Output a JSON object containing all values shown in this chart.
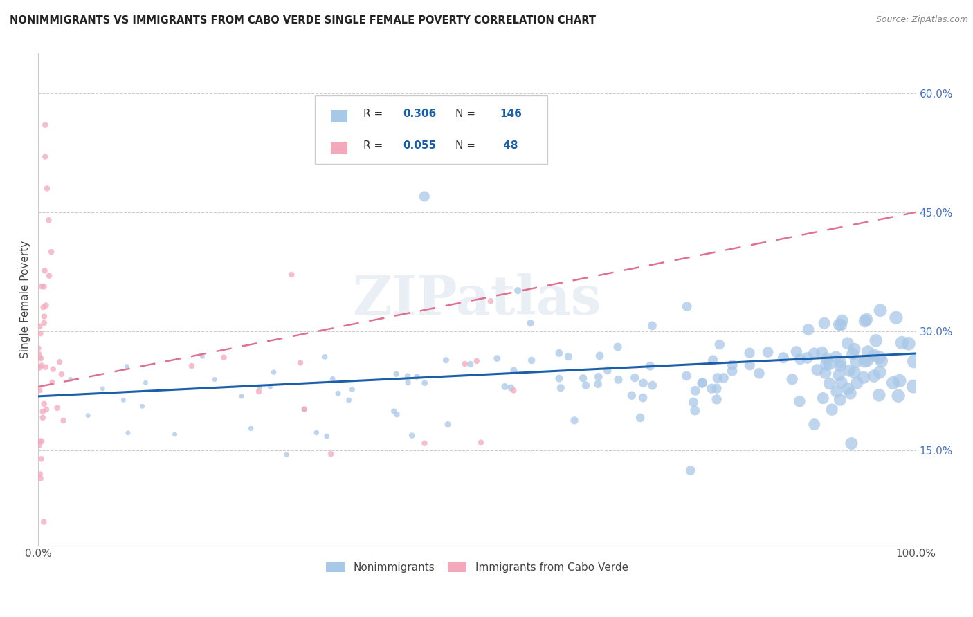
{
  "title": "NONIMMIGRANTS VS IMMIGRANTS FROM CABO VERDE SINGLE FEMALE POVERTY CORRELATION CHART",
  "source": "Source: ZipAtlas.com",
  "ylabel": "Single Female Poverty",
  "xlim": [
    0.0,
    1.0
  ],
  "ylim": [
    0.03,
    0.65
  ],
  "yticks_right": [
    0.15,
    0.3,
    0.45,
    0.6
  ],
  "ytick_labels_right": [
    "15.0%",
    "30.0%",
    "45.0%",
    "60.0%"
  ],
  "blue_R": 0.306,
  "blue_N": 146,
  "pink_R": 0.055,
  "pink_N": 48,
  "blue_color": "#a8c8e8",
  "pink_color": "#f4a8bc",
  "blue_line_color": "#1a5fa8",
  "pink_line_color": "#e07090",
  "legend_blue_label": "Nonimmigrants",
  "legend_pink_label": "Immigrants from Cabo Verde",
  "watermark": "ZIPatlas",
  "blue_line_x0": 0.0,
  "blue_line_y0": 0.218,
  "blue_line_x1": 1.0,
  "blue_line_y1": 0.272,
  "pink_line_x0": 0.0,
  "pink_line_y0": 0.23,
  "pink_line_x1": 1.0,
  "pink_line_y1": 0.45
}
